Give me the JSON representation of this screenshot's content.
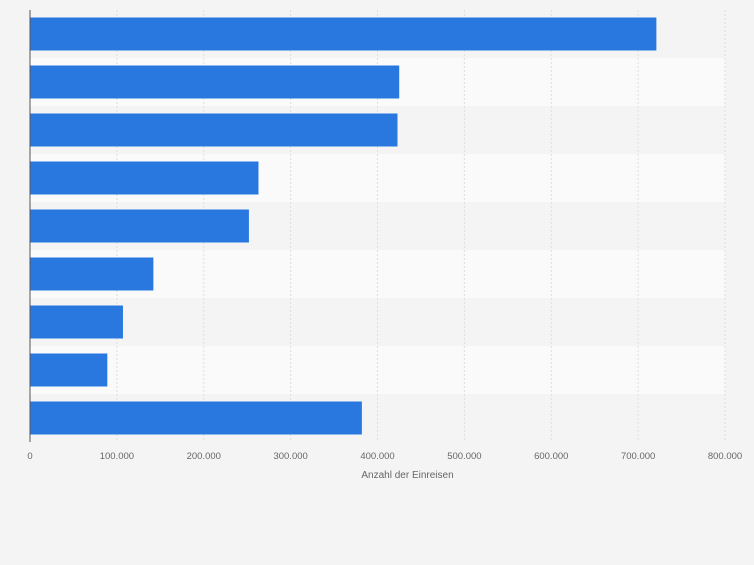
{
  "chart_data": {
    "type": "bar",
    "orientation": "horizontal",
    "categories": [
      "",
      "",
      "",
      "",
      "",
      "",
      "",
      "",
      ""
    ],
    "values": [
      721000,
      425000,
      423000,
      263000,
      252000,
      142000,
      107000,
      89000,
      382000
    ],
    "xlabel": "Anzahl der Einreisen",
    "ylabel": "",
    "xlim": [
      0,
      800000
    ],
    "ticks": [
      0,
      100000,
      200000,
      300000,
      400000,
      500000,
      600000,
      700000,
      800000
    ],
    "tick_labels": [
      "0",
      "100.000",
      "200.000",
      "300.000",
      "400.000",
      "500.000",
      "600.000",
      "700.000",
      "800.000"
    ],
    "grid": true,
    "legend": "none",
    "colors": {
      "bar": "#2878e0",
      "background": "#f4f4f4",
      "band_light": "#fafafa",
      "band_dark": "#f4f4f4",
      "grid": "#dddddd",
      "axis": "#555555",
      "text": "#666666"
    }
  }
}
